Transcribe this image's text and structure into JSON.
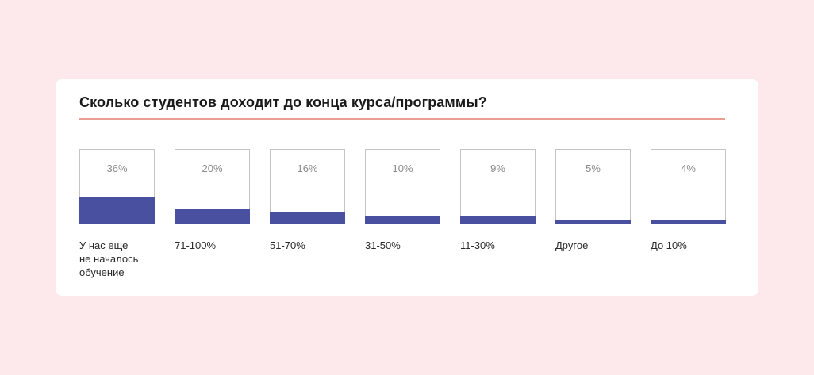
{
  "chart_data": {
    "type": "bar",
    "title": "Сколько студентов доходит до конца курса/программы?",
    "categories": [
      "У нас еще\nне началось\nобучение",
      "71-100%",
      "51-70%",
      "31-50%",
      "11-30%",
      "Другое",
      "До 10%"
    ],
    "values": [
      36,
      20,
      16,
      10,
      9,
      5,
      4
    ],
    "value_labels": [
      "36%",
      "20%",
      "16%",
      "10%",
      "9%",
      "5%",
      "4%"
    ],
    "ylim": [
      0,
      100
    ],
    "grid": false,
    "legend": "none"
  },
  "colors": {
    "background": "#fde8ec",
    "card": "#ffffff",
    "bar": "#4a50a0",
    "rule": "#ec9d92",
    "value_text": "#8a8a8a"
  }
}
